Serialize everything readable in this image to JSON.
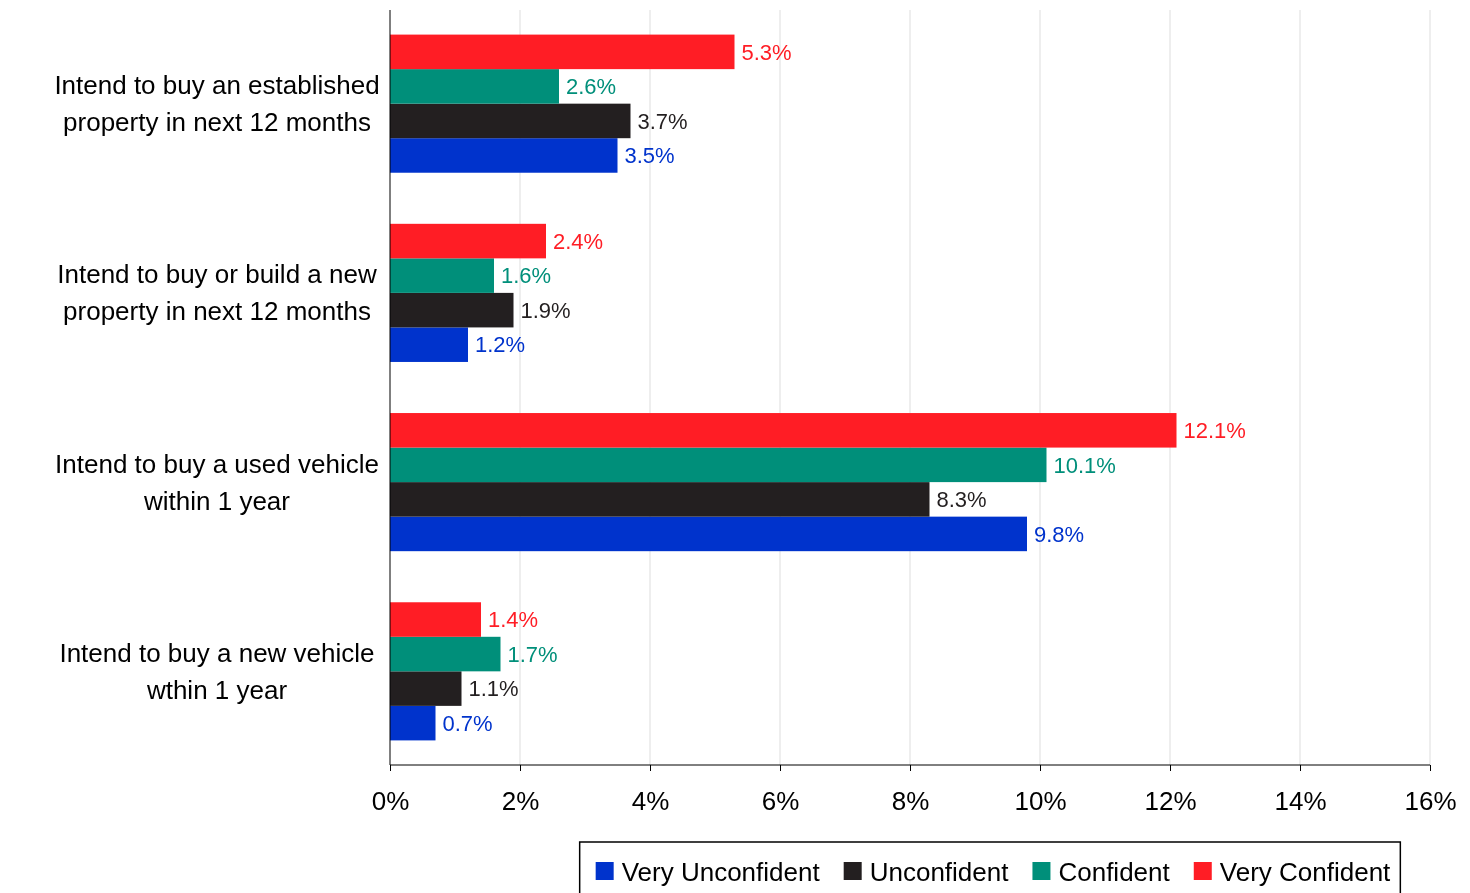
{
  "chart_data": {
    "type": "bar",
    "orientation": "horizontal",
    "categories": [
      "Intend to buy an established property in next 12 months",
      "Intend to buy or build a new property in next 12 months",
      "Intend to buy a used vehicle within 1 year",
      "Intend to buy a new vehicle wthin 1 year"
    ],
    "series": [
      {
        "name": "Very Unconfident",
        "color": "#0033cc",
        "values": [
          3.5,
          1.2,
          9.8,
          0.7
        ],
        "value_labels": [
          "3.5%",
          "1.2%",
          "9.8%",
          "0.7%"
        ]
      },
      {
        "name": "Unconfident",
        "color": "#231f20",
        "values": [
          3.7,
          1.9,
          8.3,
          1.1
        ],
        "value_labels": [
          "3.7%",
          "1.9%",
          "8.3%",
          "1.1%"
        ]
      },
      {
        "name": "Confident",
        "color": "#008f7a",
        "values": [
          2.6,
          1.6,
          10.1,
          1.7
        ],
        "value_labels": [
          "2.6%",
          "1.6%",
          "10.1%",
          "1.7%"
        ]
      },
      {
        "name": "Very Confident",
        "color": "#ff1d25",
        "values": [
          5.3,
          2.4,
          12.1,
          1.4
        ],
        "value_labels": [
          "5.3%",
          "2.4%",
          "12.1%",
          "1.4%"
        ]
      }
    ],
    "xlim": [
      0,
      16
    ],
    "xticks": [
      {
        "value": 0,
        "label": "0%"
      },
      {
        "value": 2,
        "label": "2%"
      },
      {
        "value": 4,
        "label": "4%"
      },
      {
        "value": 6,
        "label": "6%"
      },
      {
        "value": 8,
        "label": "8%"
      },
      {
        "value": 10,
        "label": "10%"
      },
      {
        "value": 12,
        "label": "12%"
      },
      {
        "value": 14,
        "label": "14%"
      },
      {
        "value": 16,
        "label": "16%"
      }
    ],
    "grid": "x",
    "legend": "bottom"
  }
}
